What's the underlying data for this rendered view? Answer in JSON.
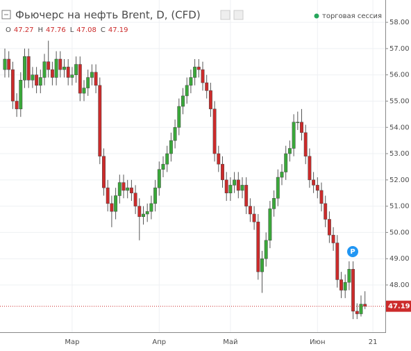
{
  "chart_data": {
    "type": "candlestick",
    "title": "Фьючерс на нефть Brent, D, (CFD)",
    "session_label": "торговая сессия",
    "ohlc_labels": [
      "O",
      "H",
      "L",
      "C"
    ],
    "badge": "P",
    "up_color": "#3aa83a",
    "down_color": "#cc2b2b",
    "categories": [
      null,
      null,
      null,
      null,
      null,
      null,
      null,
      null,
      null,
      null,
      null,
      null,
      null,
      null,
      null,
      null,
      null,
      "Мар",
      null,
      null,
      null,
      null,
      null,
      null,
      null,
      null,
      null,
      null,
      null,
      null,
      null,
      null,
      null,
      null,
      null,
      null,
      null,
      null,
      null,
      "Апр",
      null,
      null,
      null,
      null,
      null,
      null,
      null,
      null,
      null,
      null,
      null,
      null,
      null,
      null,
      null,
      null,
      null,
      "Май",
      null,
      null,
      null,
      null,
      null,
      null,
      null,
      null,
      null,
      null,
      null,
      null,
      null,
      null,
      null,
      null,
      null,
      null,
      null,
      null,
      null,
      "Июн",
      null,
      null,
      null,
      null,
      null,
      null,
      null,
      null,
      null,
      null,
      null,
      null,
      null,
      "21"
    ],
    "open": [
      56.2,
      56.6,
      56.2,
      55.0,
      54.7,
      55.8,
      56.7,
      55.8,
      56.0,
      55.6,
      55.9,
      56.5,
      56.2,
      55.9,
      56.6,
      56.2,
      56.3,
      55.9,
      56.0,
      56.4,
      55.3,
      55.5,
      55.9,
      56.1,
      55.6,
      52.9,
      51.7,
      51.1,
      50.8,
      51.4,
      51.9,
      51.6,
      51.7,
      51.5,
      51.0,
      50.6,
      50.7,
      50.8,
      51.1,
      51.7,
      52.4,
      52.6,
      53.0,
      53.5,
      54.0,
      54.8,
      55.2,
      55.6,
      55.9,
      56.3,
      56.2,
      55.7,
      55.4,
      54.7,
      53.0,
      52.6,
      52.0,
      51.5,
      51.8,
      52.0,
      51.6,
      51.8,
      51.0,
      50.7,
      50.4,
      48.5,
      49.0,
      49.7,
      50.9,
      51.3,
      52.1,
      52.3,
      53.0,
      53.2,
      54.2,
      54.2,
      53.8,
      52.9,
      52.0,
      51.8,
      51.6,
      51.1,
      50.5,
      49.9,
      49.6,
      48.2,
      47.8,
      48.1,
      48.6,
      47.0,
      46.9,
      47.27,
      null,
      null
    ],
    "high": [
      57.0,
      56.9,
      56.5,
      55.3,
      56.1,
      57.0,
      57.0,
      56.3,
      56.3,
      56.2,
      56.8,
      57.3,
      56.5,
      56.9,
      56.9,
      56.6,
      56.6,
      56.3,
      56.7,
      56.7,
      55.8,
      56.2,
      56.4,
      56.4,
      55.9,
      53.2,
      52.0,
      51.4,
      51.7,
      52.2,
      52.2,
      52.0,
      52.0,
      51.8,
      51.3,
      51.0,
      51.1,
      51.4,
      52.0,
      52.7,
      52.9,
      53.3,
      53.8,
      54.3,
      55.1,
      55.5,
      55.9,
      56.2,
      56.6,
      56.6,
      56.5,
      56.0,
      55.7,
      55.0,
      53.3,
      52.9,
      52.3,
      52.1,
      52.3,
      52.3,
      52.1,
      52.1,
      51.3,
      51.0,
      50.7,
      49.3,
      50.0,
      51.2,
      51.6,
      52.4,
      52.6,
      53.3,
      53.5,
      54.5,
      54.6,
      54.7,
      54.1,
      53.2,
      52.3,
      52.1,
      51.9,
      51.4,
      50.8,
      50.2,
      49.9,
      48.5,
      48.4,
      48.9,
      48.9,
      47.3,
      47.6,
      47.76,
      null,
      null
    ],
    "low": [
      55.9,
      55.9,
      54.7,
      54.4,
      54.4,
      55.5,
      55.5,
      55.5,
      55.3,
      55.3,
      55.6,
      55.9,
      55.6,
      55.6,
      55.9,
      55.9,
      55.6,
      55.6,
      55.7,
      55.0,
      55.0,
      55.2,
      55.6,
      55.3,
      52.6,
      51.4,
      50.8,
      50.2,
      50.5,
      51.1,
      51.3,
      51.3,
      51.2,
      50.7,
      49.7,
      50.3,
      50.4,
      50.5,
      50.8,
      51.4,
      52.1,
      52.3,
      52.7,
      53.2,
      53.7,
      54.5,
      54.9,
      55.3,
      55.6,
      55.9,
      55.4,
      55.1,
      54.4,
      52.7,
      52.3,
      51.7,
      51.2,
      51.2,
      51.5,
      51.3,
      51.3,
      50.7,
      50.4,
      50.1,
      48.2,
      47.7,
      48.7,
      49.4,
      50.6,
      51.0,
      51.8,
      52.0,
      52.7,
      52.9,
      53.9,
      53.5,
      52.6,
      51.7,
      51.5,
      51.3,
      50.8,
      50.2,
      49.6,
      49.3,
      47.9,
      47.5,
      47.5,
      47.8,
      46.7,
      46.7,
      46.8,
      47.08,
      null,
      null
    ],
    "close": [
      56.6,
      56.2,
      55.0,
      54.7,
      55.8,
      56.7,
      55.8,
      56.0,
      55.6,
      55.9,
      56.5,
      56.2,
      55.9,
      56.6,
      56.2,
      56.3,
      55.9,
      56.0,
      56.4,
      55.3,
      55.5,
      55.9,
      56.1,
      55.6,
      52.9,
      51.7,
      51.1,
      50.8,
      51.4,
      51.9,
      51.6,
      51.7,
      51.5,
      51.0,
      50.6,
      50.7,
      50.8,
      51.1,
      51.7,
      52.4,
      52.6,
      53.0,
      53.5,
      54.0,
      54.8,
      55.2,
      55.6,
      55.9,
      56.3,
      56.2,
      55.7,
      55.4,
      54.7,
      53.0,
      52.6,
      52.0,
      51.5,
      51.8,
      52.0,
      51.6,
      51.8,
      51.0,
      50.7,
      50.4,
      48.5,
      49.0,
      49.7,
      50.9,
      51.3,
      52.1,
      52.3,
      53.0,
      53.2,
      54.2,
      54.2,
      53.8,
      52.9,
      52.0,
      51.8,
      51.6,
      51.1,
      50.5,
      49.9,
      49.6,
      48.2,
      47.8,
      48.1,
      48.6,
      47.0,
      46.9,
      47.27,
      47.19,
      null,
      null
    ],
    "ylim": [
      46.2,
      58.85
    ],
    "yticks": [
      {
        "value": 48,
        "label": "48.00"
      },
      {
        "value": 49,
        "label": "49.00"
      },
      {
        "value": 50,
        "label": "50.00"
      },
      {
        "value": 51,
        "label": "51.00"
      },
      {
        "value": 52,
        "label": "52.00"
      },
      {
        "value": 53,
        "label": "53.00"
      },
      {
        "value": 54,
        "label": "54.00"
      },
      {
        "value": 55,
        "label": "55.00"
      },
      {
        "value": 56,
        "label": "56.00"
      },
      {
        "value": 57,
        "label": "57.00"
      },
      {
        "value": 58,
        "label": "58.00"
      }
    ],
    "grid": true
  }
}
